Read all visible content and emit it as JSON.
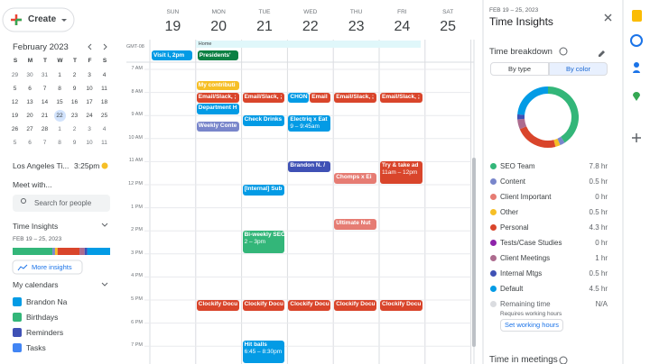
{
  "sidebar": {
    "create": "Create",
    "mini_calendar": {
      "month": "February 2023",
      "weekdays": [
        "S",
        "M",
        "T",
        "W",
        "T",
        "F",
        "S"
      ],
      "weeks": [
        [
          "29",
          "30",
          "31",
          "1",
          "2",
          "3",
          "4"
        ],
        [
          "5",
          "6",
          "7",
          "8",
          "9",
          "10",
          "11"
        ],
        [
          "12",
          "13",
          "14",
          "15",
          "16",
          "17",
          "18"
        ],
        [
          "19",
          "20",
          "21",
          "22",
          "23",
          "24",
          "25"
        ],
        [
          "26",
          "27",
          "28",
          "1",
          "2",
          "3",
          "4"
        ],
        [
          "5",
          "6",
          "7",
          "8",
          "9",
          "10",
          "11"
        ]
      ],
      "today": "31",
      "selected": "22"
    },
    "timezone": "Los Angeles Ti...",
    "time": "3:25pm",
    "meet_with": "Meet with...",
    "search": "Search for people",
    "insights": {
      "title": "Time Insights",
      "range": "FEB 19 – 25, 2023",
      "more": "More insights"
    },
    "calendars": {
      "title": "My calendars",
      "items": [
        {
          "name": "Brandon Na",
          "color": "#039be5"
        },
        {
          "name": "Birthdays",
          "color": "#33b679"
        },
        {
          "name": "Reminders",
          "color": "#3f51b5"
        },
        {
          "name": "Tasks",
          "color": "#4285f4"
        }
      ]
    }
  },
  "calendar": {
    "days": [
      {
        "name": "SUN",
        "date": "19"
      },
      {
        "name": "MON",
        "date": "20"
      },
      {
        "name": "TUE",
        "date": "21"
      },
      {
        "name": "WED",
        "date": "22"
      },
      {
        "name": "THU",
        "date": "23"
      },
      {
        "name": "FRI",
        "date": "24"
      },
      {
        "name": "SAT",
        "date": "25"
      }
    ],
    "gmt": "GMT-08",
    "home": "Home",
    "hours": [
      "7 AM",
      "8 AM",
      "9 AM",
      "10 AM",
      "11 AM",
      "12 PM",
      "1 PM",
      "2 PM",
      "3 PM",
      "4 PM",
      "5 PM",
      "6 PM",
      "7 PM"
    ],
    "all_day": [
      {
        "day": 0,
        "text": "Visit i, 2pm",
        "color": "#039be5"
      },
      {
        "day": 1,
        "text": "Presidents' ",
        "color": "#0b8043"
      }
    ],
    "events": [
      {
        "day": 1,
        "start": 7.5,
        "end": 7.95,
        "title": "My contributi",
        "color": "#f6bf26"
      },
      {
        "day": 1,
        "start": 8,
        "end": 8.5,
        "title": "Email/Slack, ;",
        "color": "#d9452b"
      },
      {
        "day": 1,
        "start": 8.5,
        "end": 9,
        "title": "Department H",
        "color": "#039be5"
      },
      {
        "day": 1,
        "start": 9.25,
        "end": 9.75,
        "title": "Weekly Conte",
        "color": "#7986cb"
      },
      {
        "day": 1,
        "start": 17,
        "end": 17.5,
        "title": "Clockify Docu",
        "color": "#d9452b"
      },
      {
        "day": 2,
        "start": 8,
        "end": 8.5,
        "title": "Email/Slack, ;",
        "color": "#d9452b"
      },
      {
        "day": 2,
        "start": 9,
        "end": 9.5,
        "title": "Check Drinks",
        "color": "#039be5"
      },
      {
        "day": 2,
        "start": 12,
        "end": 12.5,
        "title": "[Internal] Sub",
        "color": "#039be5"
      },
      {
        "day": 2,
        "start": 14,
        "end": 15,
        "title": "Bi-weekly SEO",
        "time": "2 – 3pm",
        "color": "#33b679"
      },
      {
        "day": 2,
        "start": 17,
        "end": 17.5,
        "title": "Clockify Docu",
        "color": "#d9452b"
      },
      {
        "day": 2,
        "start": 18.75,
        "end": 20.5,
        "title": "Hit balls",
        "time": "6:45 – 8:30pm",
        "color": "#039be5"
      },
      {
        "day": 3,
        "start": 8,
        "end": 8.5,
        "title": "CHON",
        "color": "#039be5",
        "half": 0
      },
      {
        "day": 3,
        "start": 8,
        "end": 8.5,
        "title": "Email",
        "color": "#d9452b",
        "half": 1
      },
      {
        "day": 3,
        "start": 9,
        "end": 9.75,
        "title": "Electriq x Eat",
        "time": "9 – 9:45am",
        "color": "#039be5"
      },
      {
        "day": 3,
        "start": 11,
        "end": 11.5,
        "title": "Brandon N. /",
        "color": "#3f51b5"
      },
      {
        "day": 3,
        "start": 17,
        "end": 17.5,
        "title": "Clockify Docu",
        "color": "#d9452b"
      },
      {
        "day": 4,
        "start": 8,
        "end": 8.5,
        "title": "Email/Slack, ;",
        "color": "#d9452b"
      },
      {
        "day": 4,
        "start": 11.5,
        "end": 12,
        "title": "Chomps x Ei",
        "color": "#e67c73"
      },
      {
        "day": 4,
        "start": 13.5,
        "end": 14,
        "title": "Ultimate Nut",
        "color": "#e67c73"
      },
      {
        "day": 4,
        "start": 17,
        "end": 17.5,
        "title": "Clockify Docu",
        "color": "#d9452b"
      },
      {
        "day": 5,
        "start": 8,
        "end": 8.5,
        "title": "Email/Slack, ;",
        "color": "#d9452b"
      },
      {
        "day": 5,
        "start": 11,
        "end": 12,
        "title": "Try & take ad",
        "time": "11am – 12pm",
        "color": "#d9452b"
      },
      {
        "day": 5,
        "start": 17,
        "end": 17.5,
        "title": "Clockify Docu",
        "color": "#d9452b"
      }
    ]
  },
  "insights_panel": {
    "range": "FEB 19 – 25, 2023",
    "title": "Time Insights",
    "section": "Time breakdown",
    "tabs": [
      "By type",
      "By color"
    ],
    "selected_tab": 1,
    "breakdown": [
      {
        "name": "SEO Team",
        "color": "#33b679",
        "value": 7.8,
        "label": "7.8 hr"
      },
      {
        "name": "Content",
        "color": "#7986cb",
        "value": 0.5,
        "label": "0.5 hr"
      },
      {
        "name": "Client Important",
        "color": "#e67c73",
        "value": 0,
        "label": "0 hr"
      },
      {
        "name": "Other",
        "color": "#f6bf26",
        "value": 0.5,
        "label": "0.5 hr"
      },
      {
        "name": "Personal",
        "color": "#d9452b",
        "value": 4.3,
        "label": "4.3 hr"
      },
      {
        "name": "Tests/Case Studies",
        "color": "#8e24aa",
        "value": 0,
        "label": "0 hr"
      },
      {
        "name": "Client Meetings",
        "color": "#ad6b8e",
        "value": 1,
        "label": "1 hr"
      },
      {
        "name": "Internal Mtgs",
        "color": "#3f51b5",
        "value": 0.5,
        "label": "0.5 hr"
      },
      {
        "name": "Default",
        "color": "#039be5",
        "value": 4.5,
        "label": "4.5 hr"
      },
      {
        "name": "Remaining time",
        "color": "#dadce0",
        "value": null,
        "label": "N/A"
      }
    ],
    "note": "Requires working hours",
    "button": "Set working hours",
    "next_section": "Time in meetings"
  }
}
